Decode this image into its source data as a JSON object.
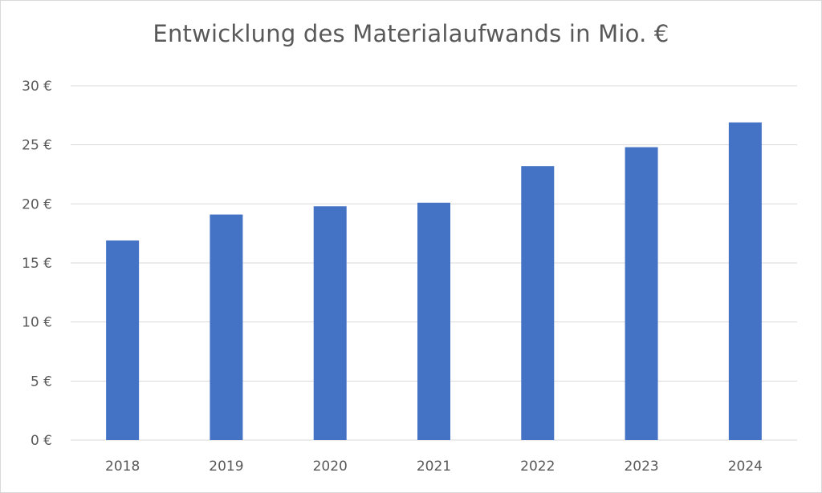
{
  "chart_data": {
    "type": "bar",
    "title": "Entwicklung des Materialaufwands in Mio. €",
    "categories": [
      "2018",
      "2019",
      "2020",
      "2021",
      "2022",
      "2023",
      "2024"
    ],
    "values": [
      16.9,
      19.1,
      19.8,
      20.1,
      23.2,
      24.8,
      26.9
    ],
    "xlabel": "",
    "ylabel": "",
    "ylim": [
      0,
      30
    ],
    "yticks": [
      0,
      5,
      10,
      15,
      20,
      25,
      30
    ],
    "ytick_labels": [
      "0 €",
      "5 €",
      "10 €",
      "15 €",
      "20 €",
      "25 €",
      "30 €"
    ],
    "grid": true,
    "legend": "none",
    "bar_color": "#4472C4",
    "grid_color": "#d9d9d9"
  }
}
